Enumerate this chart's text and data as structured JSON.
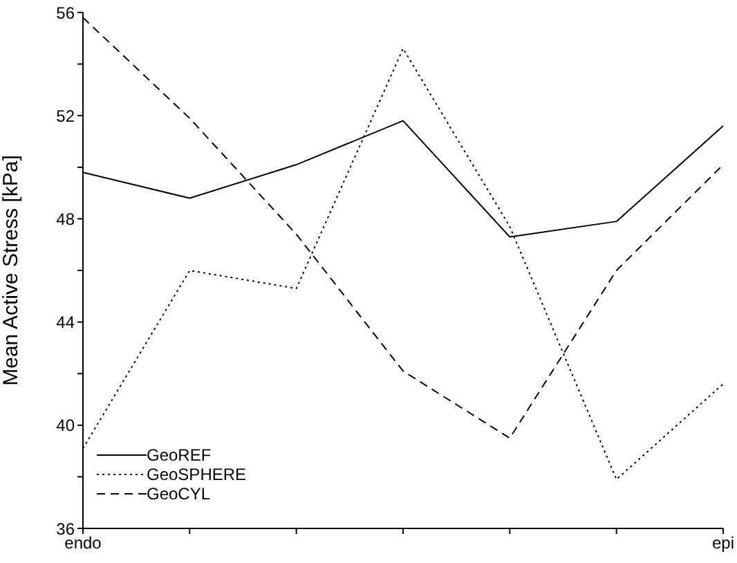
{
  "chart_data": {
    "type": "line",
    "ylabel": "Mean Active Stress [kPa]",
    "categories": [
      "endo",
      null,
      null,
      null,
      null,
      null,
      "epi"
    ],
    "ylim": [
      36,
      56
    ],
    "yticks": [
      36,
      {
        "value": 38,
        "label": null
      },
      40,
      {
        "value": 42,
        "label": null
      },
      44,
      {
        "value": 46,
        "label": null
      },
      48,
      {
        "value": 50,
        "label": null
      },
      52,
      {
        "value": 54,
        "label": null
      },
      56
    ],
    "grid": false,
    "legend": "bottom left",
    "marker": "none",
    "series": [
      {
        "name": "GeoREF",
        "color": "#000000",
        "line_style": "solid",
        "values": [
          49.8,
          48.8,
          50.1,
          51.8,
          47.3,
          47.9,
          51.6
        ]
      },
      {
        "name": "GeoSPHERE",
        "color": "#000000",
        "line_style": "dotted",
        "values": [
          39.1,
          46.0,
          45.3,
          54.6,
          47.7,
          37.9,
          41.6
        ]
      },
      {
        "name": "GeoCYL",
        "color": "#000000",
        "line_style": "dashed",
        "values": [
          55.8,
          51.9,
          47.4,
          42.1,
          39.5,
          46.0,
          50.1
        ]
      }
    ]
  }
}
